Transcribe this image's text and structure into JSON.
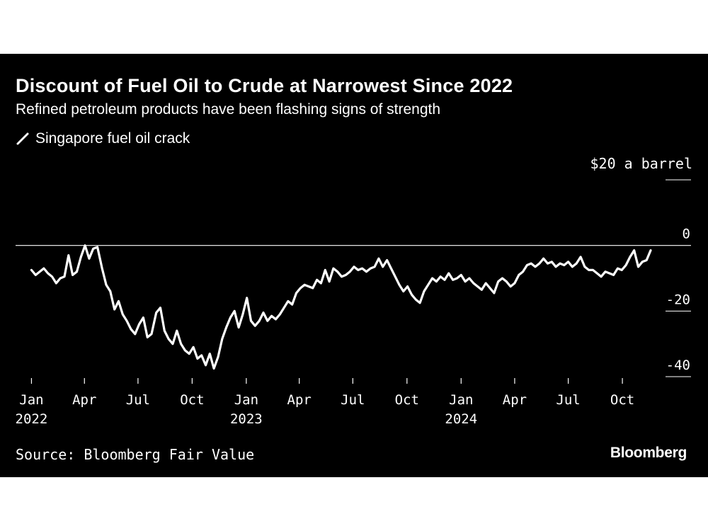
{
  "chart_data": {
    "type": "line",
    "title": "Discount of Fuel Oil to Crude at Narrowest Since 2022",
    "subtitle": "Refined petroleum products have been flashing signs of strength",
    "source": "Source: Bloomberg Fair Value",
    "brand": "Bloomberg",
    "unit_label": "$20 a barrel",
    "ylim": [
      -40,
      20
    ],
    "yticks": [
      {
        "value": 20,
        "label": ""
      },
      {
        "value": 0,
        "label": "0"
      },
      {
        "value": -20,
        "label": "-20"
      },
      {
        "value": -40,
        "label": "-40"
      }
    ],
    "xticks": [
      {
        "date": "2022-01-01",
        "label": "Jan",
        "year": "2022"
      },
      {
        "date": "2022-04-01",
        "label": "Apr",
        "year": ""
      },
      {
        "date": "2022-07-01",
        "label": "Jul",
        "year": ""
      },
      {
        "date": "2022-10-01",
        "label": "Oct",
        "year": ""
      },
      {
        "date": "2023-01-01",
        "label": "Jan",
        "year": "2023"
      },
      {
        "date": "2023-04-01",
        "label": "Apr",
        "year": ""
      },
      {
        "date": "2023-07-01",
        "label": "Jul",
        "year": ""
      },
      {
        "date": "2023-10-01",
        "label": "Oct",
        "year": ""
      },
      {
        "date": "2024-01-01",
        "label": "Jan",
        "year": "2024"
      },
      {
        "date": "2024-04-01",
        "label": "Apr",
        "year": ""
      },
      {
        "date": "2024-07-01",
        "label": "Jul",
        "year": ""
      },
      {
        "date": "2024-10-01",
        "label": "Oct",
        "year": ""
      }
    ],
    "xlim": [
      "2021-12-05",
      "2025-01-28"
    ],
    "reference_line": 0,
    "line_color": "#ffffff",
    "series": [
      {
        "name": "Singapore fuel oil crack",
        "color": "#ffffff",
        "data": [
          [
            "2022-01-01",
            -7.5
          ],
          [
            "2022-01-08",
            -9.0
          ],
          [
            "2022-01-15",
            -8.0
          ],
          [
            "2022-01-22",
            -7.0
          ],
          [
            "2022-01-29",
            -8.5
          ],
          [
            "2022-02-05",
            -9.5
          ],
          [
            "2022-02-12",
            -11.5
          ],
          [
            "2022-02-19",
            -10.0
          ],
          [
            "2022-02-26",
            -9.5
          ],
          [
            "2022-03-05",
            -3.0
          ],
          [
            "2022-03-12",
            -9.0
          ],
          [
            "2022-03-19",
            -8.0
          ],
          [
            "2022-03-26",
            -3.5
          ],
          [
            "2022-04-02",
            0.0
          ],
          [
            "2022-04-09",
            -4.0
          ],
          [
            "2022-04-16",
            -1.0
          ],
          [
            "2022-04-23",
            -0.5
          ],
          [
            "2022-05-01",
            -7.0
          ],
          [
            "2022-05-08",
            -12.0
          ],
          [
            "2022-05-15",
            -14.0
          ],
          [
            "2022-05-22",
            -19.5
          ],
          [
            "2022-05-29",
            -17.0
          ],
          [
            "2022-06-05",
            -21.0
          ],
          [
            "2022-06-12",
            -23.0
          ],
          [
            "2022-06-19",
            -25.5
          ],
          [
            "2022-06-26",
            -27.0
          ],
          [
            "2022-07-03",
            -24.0
          ],
          [
            "2022-07-10",
            -22.0
          ],
          [
            "2022-07-17",
            -28.0
          ],
          [
            "2022-07-24",
            -27.0
          ],
          [
            "2022-08-01",
            -20.5
          ],
          [
            "2022-08-08",
            -19.0
          ],
          [
            "2022-08-15",
            -26.0
          ],
          [
            "2022-08-22",
            -28.5
          ],
          [
            "2022-08-29",
            -30.0
          ],
          [
            "2022-09-05",
            -26.0
          ],
          [
            "2022-09-12",
            -30.0
          ],
          [
            "2022-09-19",
            -32.0
          ],
          [
            "2022-09-26",
            -33.0
          ],
          [
            "2022-10-03",
            -31.0
          ],
          [
            "2022-10-10",
            -34.5
          ],
          [
            "2022-10-17",
            -33.5
          ],
          [
            "2022-10-24",
            -36.5
          ],
          [
            "2022-10-31",
            -33.0
          ],
          [
            "2022-11-07",
            -37.5
          ],
          [
            "2022-11-14",
            -34.0
          ],
          [
            "2022-11-21",
            -28.5
          ],
          [
            "2022-11-28",
            -25.0
          ],
          [
            "2022-12-05",
            -22.0
          ],
          [
            "2022-12-12",
            -20.0
          ],
          [
            "2022-12-19",
            -25.0
          ],
          [
            "2022-12-26",
            -21.0
          ],
          [
            "2023-01-02",
            -16.0
          ],
          [
            "2023-01-09",
            -23.0
          ],
          [
            "2023-01-16",
            -24.5
          ],
          [
            "2023-01-23",
            -23.0
          ],
          [
            "2023-01-30",
            -20.5
          ],
          [
            "2023-02-06",
            -23.0
          ],
          [
            "2023-02-13",
            -21.5
          ],
          [
            "2023-02-20",
            -22.5
          ],
          [
            "2023-02-27",
            -21.0
          ],
          [
            "2023-03-06",
            -19.0
          ],
          [
            "2023-03-13",
            -17.0
          ],
          [
            "2023-03-20",
            -18.0
          ],
          [
            "2023-03-27",
            -14.5
          ],
          [
            "2023-04-03",
            -13.0
          ],
          [
            "2023-04-10",
            -12.0
          ],
          [
            "2023-04-17",
            -12.5
          ],
          [
            "2023-04-24",
            -13.0
          ],
          [
            "2023-05-01",
            -10.5
          ],
          [
            "2023-05-08",
            -11.5
          ],
          [
            "2023-05-15",
            -7.5
          ],
          [
            "2023-05-22",
            -11.0
          ],
          [
            "2023-05-29",
            -7.0
          ],
          [
            "2023-06-05",
            -8.0
          ],
          [
            "2023-06-12",
            -9.5
          ],
          [
            "2023-06-19",
            -9.0
          ],
          [
            "2023-06-26",
            -8.0
          ],
          [
            "2023-07-03",
            -6.5
          ],
          [
            "2023-07-10",
            -7.5
          ],
          [
            "2023-07-17",
            -7.0
          ],
          [
            "2023-07-24",
            -8.0
          ],
          [
            "2023-07-31",
            -7.0
          ],
          [
            "2023-08-07",
            -6.5
          ],
          [
            "2023-08-14",
            -4.0
          ],
          [
            "2023-08-21",
            -6.5
          ],
          [
            "2023-08-28",
            -4.5
          ],
          [
            "2023-09-04",
            -7.0
          ],
          [
            "2023-09-11",
            -9.5
          ],
          [
            "2023-09-18",
            -12.0
          ],
          [
            "2023-09-25",
            -14.0
          ],
          [
            "2023-10-02",
            -12.5
          ],
          [
            "2023-10-09",
            -15.0
          ],
          [
            "2023-10-16",
            -16.5
          ],
          [
            "2023-10-23",
            -17.5
          ],
          [
            "2023-10-30",
            -14.0
          ],
          [
            "2023-11-06",
            -12.0
          ],
          [
            "2023-11-13",
            -10.0
          ],
          [
            "2023-11-20",
            -11.0
          ],
          [
            "2023-11-27",
            -9.5
          ],
          [
            "2023-12-04",
            -10.5
          ],
          [
            "2023-12-11",
            -8.5
          ],
          [
            "2023-12-18",
            -10.5
          ],
          [
            "2023-12-25",
            -10.0
          ],
          [
            "2024-01-01",
            -9.0
          ],
          [
            "2024-01-08",
            -11.0
          ],
          [
            "2024-01-15",
            -10.0
          ],
          [
            "2024-01-22",
            -11.5
          ],
          [
            "2024-01-29",
            -12.5
          ],
          [
            "2024-02-05",
            -13.5
          ],
          [
            "2024-02-12",
            -11.5
          ],
          [
            "2024-02-19",
            -13.0
          ],
          [
            "2024-02-26",
            -14.5
          ],
          [
            "2024-03-04",
            -11.0
          ],
          [
            "2024-03-11",
            -10.0
          ],
          [
            "2024-03-18",
            -11.0
          ],
          [
            "2024-03-25",
            -12.5
          ],
          [
            "2024-04-01",
            -11.5
          ],
          [
            "2024-04-08",
            -9.0
          ],
          [
            "2024-04-15",
            -8.0
          ],
          [
            "2024-04-22",
            -6.0
          ],
          [
            "2024-04-29",
            -5.5
          ],
          [
            "2024-05-06",
            -6.5
          ],
          [
            "2024-05-13",
            -5.5
          ],
          [
            "2024-05-20",
            -4.0
          ],
          [
            "2024-05-27",
            -5.5
          ],
          [
            "2024-06-03",
            -5.0
          ],
          [
            "2024-06-10",
            -6.5
          ],
          [
            "2024-06-17",
            -5.5
          ],
          [
            "2024-06-24",
            -6.0
          ],
          [
            "2024-07-01",
            -5.0
          ],
          [
            "2024-07-08",
            -6.5
          ],
          [
            "2024-07-15",
            -5.5
          ],
          [
            "2024-07-22",
            -3.5
          ],
          [
            "2024-07-29",
            -6.5
          ],
          [
            "2024-08-05",
            -7.5
          ],
          [
            "2024-08-12",
            -7.5
          ],
          [
            "2024-08-19",
            -8.5
          ],
          [
            "2024-08-26",
            -9.5
          ],
          [
            "2024-09-02",
            -8.0
          ],
          [
            "2024-09-09",
            -8.5
          ],
          [
            "2024-09-16",
            -9.0
          ],
          [
            "2024-09-23",
            -7.0
          ],
          [
            "2024-09-30",
            -7.5
          ],
          [
            "2024-10-07",
            -6.0
          ],
          [
            "2024-10-14",
            -3.5
          ],
          [
            "2024-10-21",
            -1.5
          ],
          [
            "2024-10-28",
            -6.5
          ],
          [
            "2024-11-04",
            -5.0
          ],
          [
            "2024-11-11",
            -4.5
          ],
          [
            "2024-11-18",
            -1.5
          ]
        ]
      }
    ],
    "grid": false,
    "legend_position": "top-left"
  }
}
